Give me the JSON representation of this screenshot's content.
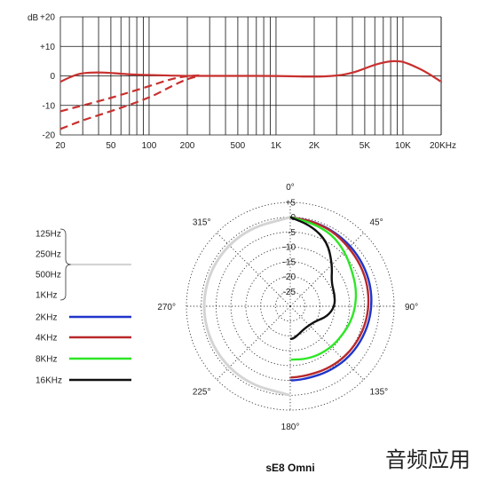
{
  "watermark": "音频应用",
  "chart_data": [
    {
      "type": "line",
      "xscale": "log",
      "xlim": [
        20,
        20000
      ],
      "ylim": [
        -20,
        20
      ],
      "ylabel": "dB",
      "x_ticks": [
        20,
        50,
        100,
        200,
        500,
        1000,
        2000,
        5000,
        10000,
        20000
      ],
      "x_tick_labels": [
        "20",
        "50",
        "100",
        "200",
        "500",
        "1K",
        "2K",
        "5K",
        "10K",
        "20KHz"
      ],
      "y_ticks": [
        20,
        10,
        0,
        -10,
        -20
      ],
      "y_tick_labels": [
        "+20",
        "+10",
        "0",
        "-10",
        "-20"
      ],
      "grid": true,
      "colors": {
        "response": "#c8302e",
        "grid": "#111111"
      },
      "series": [
        {
          "style": "solid",
          "color": "#c8302e",
          "x": [
            20,
            25,
            30,
            40,
            50,
            70,
            100,
            150,
            200,
            300,
            500,
            1000,
            2000,
            3000,
            4000,
            5000,
            6000,
            7000,
            8000,
            9000,
            10000,
            12000,
            15000,
            20000
          ],
          "y": [
            -2,
            0,
            1,
            1.2,
            1,
            0.5,
            0.3,
            0.1,
            0,
            0,
            0,
            0,
            -0.3,
            0,
            1,
            2.5,
            3.8,
            4.5,
            5,
            5,
            4.8,
            3.5,
            1.5,
            -2
          ]
        },
        {
          "style": "dashed",
          "color": "#c8302e",
          "x": [
            20,
            30,
            50,
            100,
            150,
            200,
            250
          ],
          "y": [
            -12,
            -10,
            -7.5,
            -3.5,
            -1,
            0,
            0.2
          ]
        },
        {
          "style": "dashed",
          "color": "#c8302e",
          "x": [
            20,
            30,
            50,
            100,
            150,
            200,
            250
          ],
          "y": [
            -18,
            -15,
            -12,
            -7.5,
            -3.5,
            -1,
            0
          ]
        }
      ]
    },
    {
      "type": "polar",
      "title": "sE8  Omni",
      "radial_ticks": [
        "+5",
        "0",
        "-5",
        "-10",
        "-15",
        "-20",
        "-25"
      ],
      "radial_range_db": [
        -30,
        5
      ],
      "angle_labels": [
        {
          "angle": 0,
          "label": "0°"
        },
        {
          "angle": 45,
          "label": "45°"
        },
        {
          "angle": 90,
          "label": "90°"
        },
        {
          "angle": 135,
          "label": "135°"
        },
        {
          "angle": 180,
          "label": "180°"
        },
        {
          "angle": 225,
          "label": "225°"
        },
        {
          "angle": 270,
          "label": "270°"
        },
        {
          "angle": 315,
          "label": "315°"
        }
      ],
      "legend": [
        {
          "label": "125Hz",
          "color": "#d4d4d4"
        },
        {
          "label": "250Hz",
          "color": "#d4d4d4"
        },
        {
          "label": "500Hz",
          "color": "#d4d4d4"
        },
        {
          "label": "1KHz",
          "color": "#d4d4d4"
        },
        {
          "label": "2KHz",
          "color": "#2035c9"
        },
        {
          "label": "4KHz",
          "color": "#b8292b"
        },
        {
          "label": "8KHz",
          "color": "#2ee626"
        },
        {
          "label": "16KHz",
          "color": "#111111"
        }
      ],
      "series": [
        {
          "name": "125Hz/250Hz/500Hz/1KHz",
          "color": "#d4d4d4",
          "side": "left",
          "angles": [
            0,
            30,
            60,
            90,
            120,
            150,
            180
          ],
          "db": [
            0,
            0,
            0,
            0,
            0,
            0,
            0
          ]
        },
        {
          "name": "2KHz",
          "color": "#2035c9",
          "side": "right",
          "angles": [
            0,
            15,
            30,
            45,
            60,
            75,
            90,
            105,
            120,
            135,
            150,
            165,
            175,
            180
          ],
          "db": [
            0,
            -0.3,
            -0.8,
            -1.2,
            -1.6,
            -2,
            -2.5,
            -3,
            -3.5,
            -4,
            -4.5,
            -5,
            -5,
            -5
          ]
        },
        {
          "name": "4KHz",
          "color": "#b8292b",
          "side": "right",
          "angles": [
            0,
            15,
            30,
            45,
            60,
            75,
            90,
            105,
            120,
            135,
            150,
            165,
            175,
            180
          ],
          "db": [
            0,
            -0.4,
            -1,
            -2,
            -2.5,
            -3,
            -3.5,
            -4,
            -4.5,
            -5,
            -5.5,
            -6,
            -6,
            -6
          ]
        },
        {
          "name": "8KHz",
          "color": "#2ee626",
          "side": "right",
          "angles": [
            0,
            15,
            30,
            45,
            60,
            75,
            90,
            105,
            120,
            135,
            150,
            165,
            175,
            180
          ],
          "db": [
            0,
            -1,
            -2,
            -4,
            -6,
            -7,
            -8,
            -9,
            -10,
            -10.5,
            -11,
            -11.5,
            -12,
            -12
          ]
        },
        {
          "name": "16KHz",
          "color": "#111111",
          "side": "right",
          "angles": [
            0,
            15,
            30,
            45,
            60,
            75,
            90,
            105,
            120,
            135,
            150,
            165,
            175,
            180
          ],
          "db": [
            0,
            -2,
            -5,
            -10,
            -14,
            -14.5,
            -15,
            -17,
            -20,
            -21,
            -21,
            -20,
            -19,
            -19
          ]
        }
      ]
    }
  ]
}
